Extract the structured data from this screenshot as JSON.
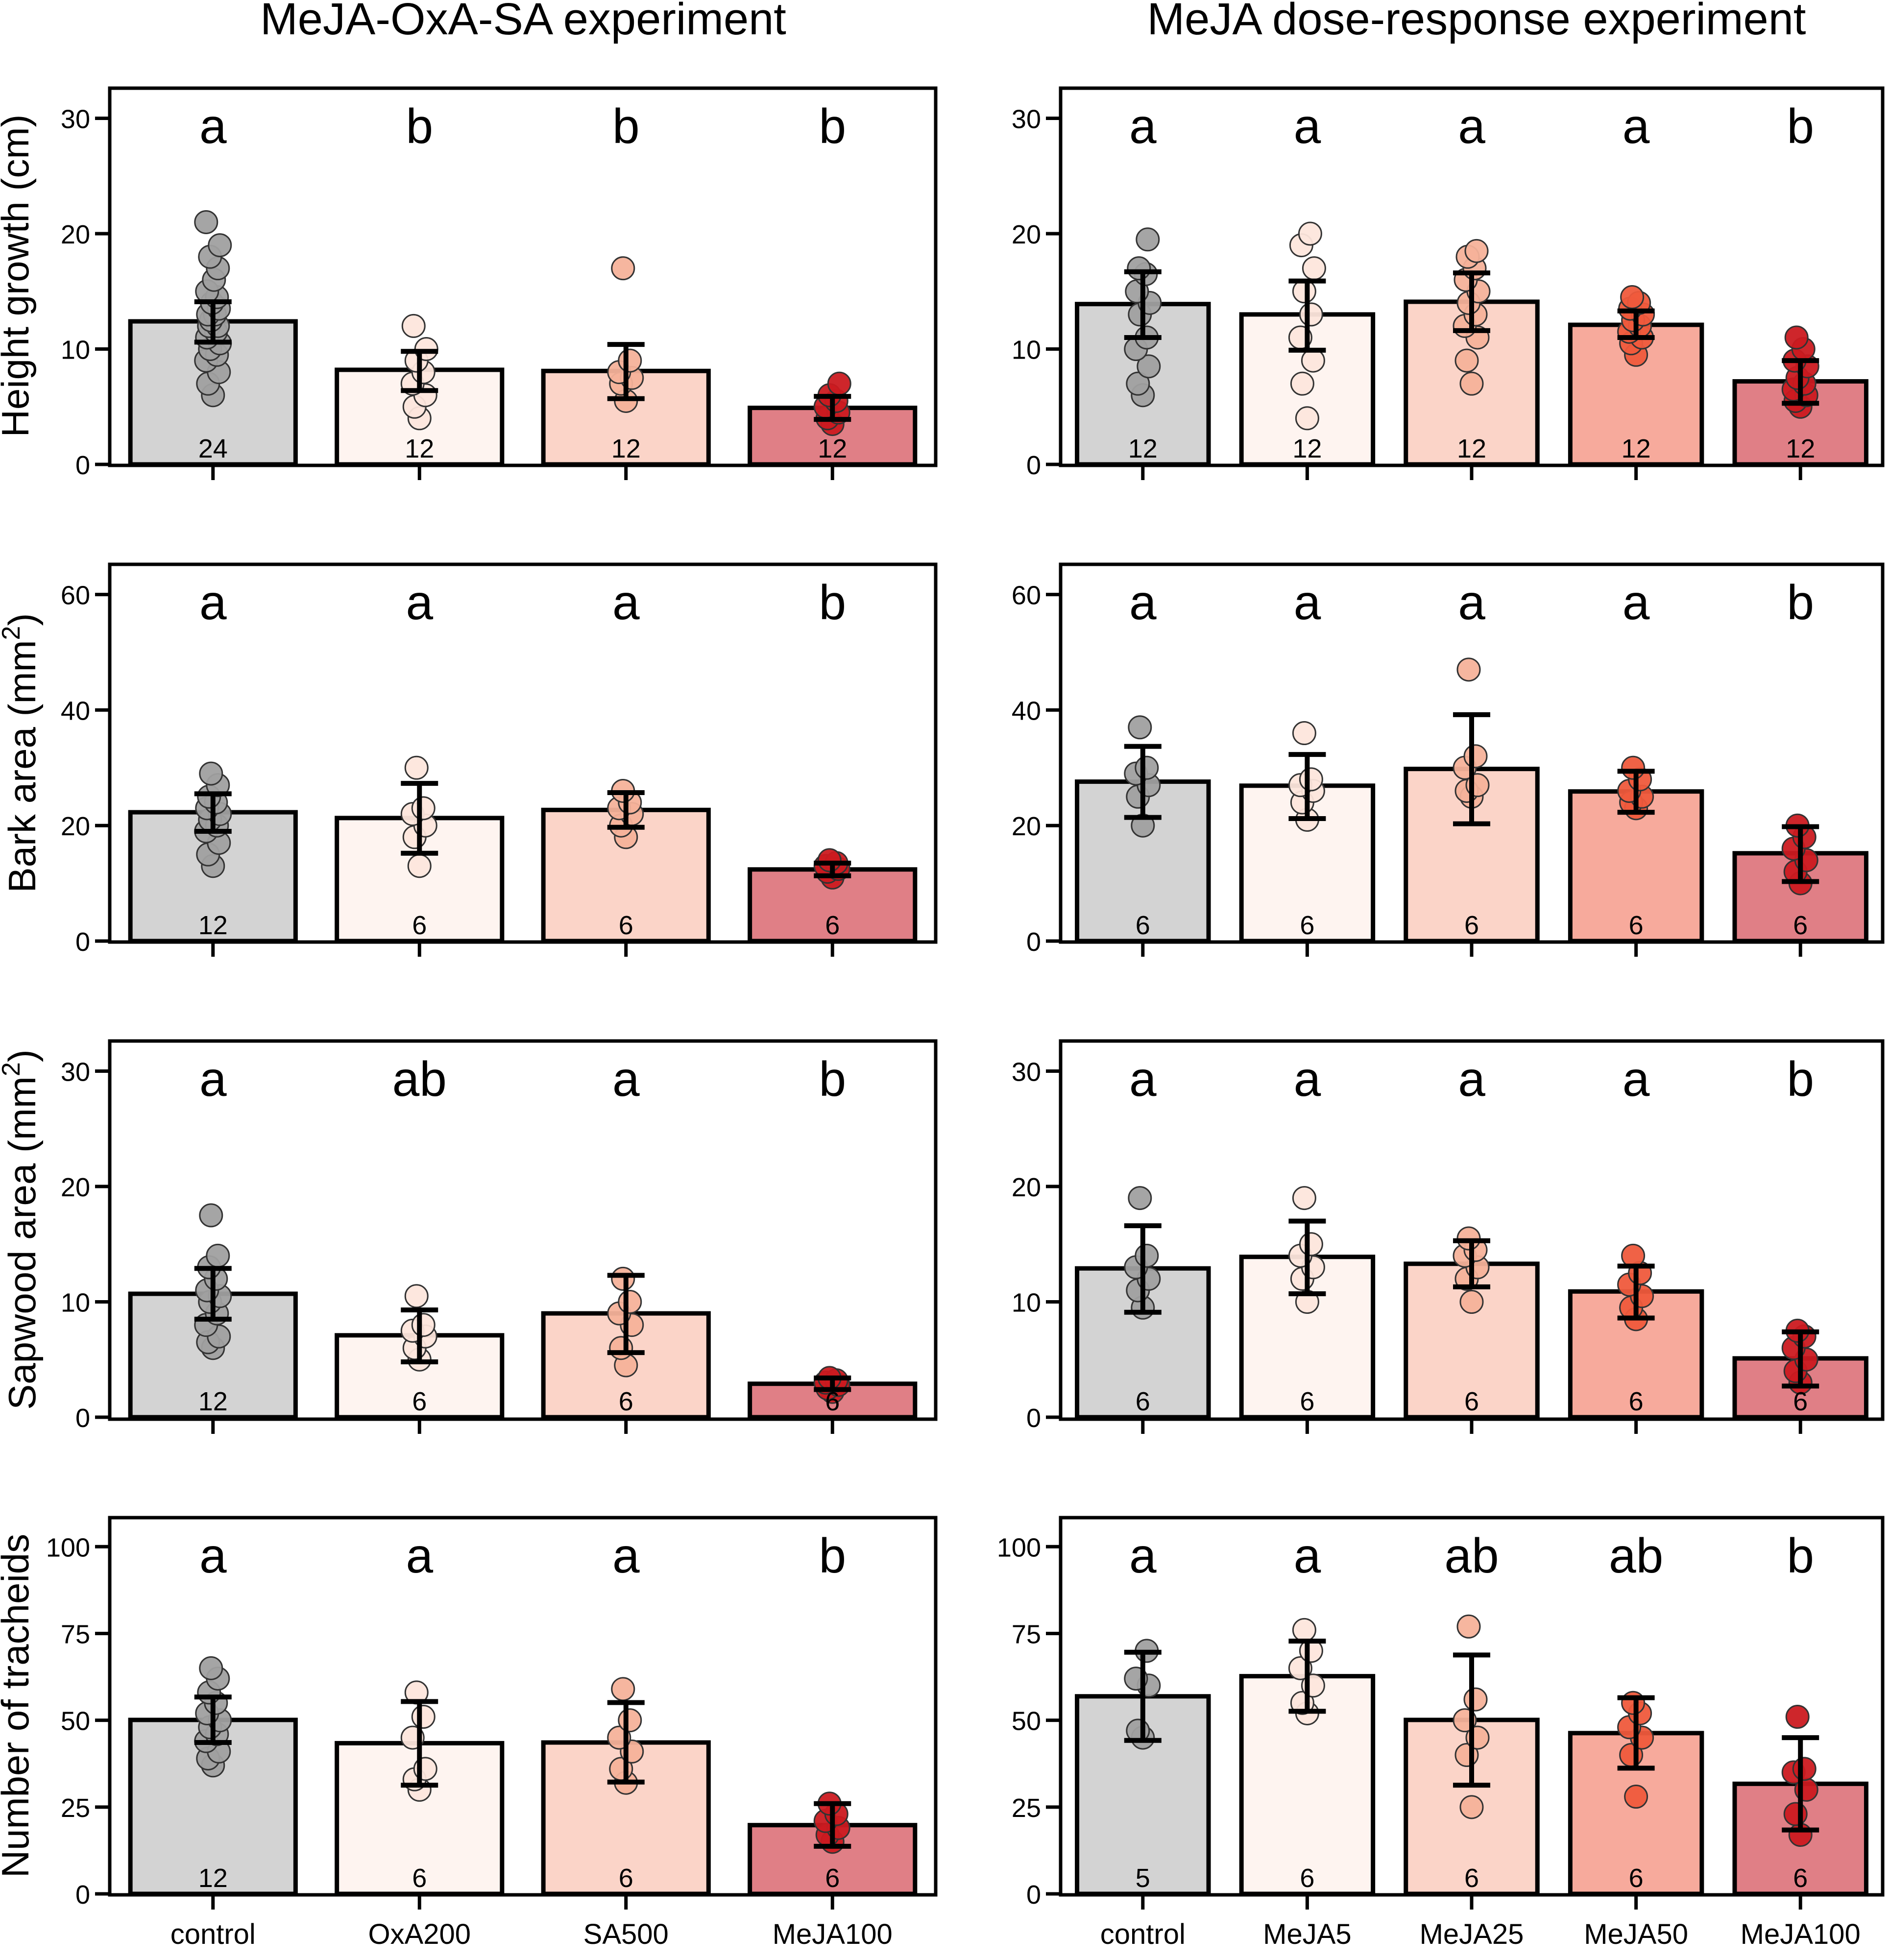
{
  "column_titles": [
    "MeJA-OxA-SA experiment",
    "MeJA dose-response experiment"
  ],
  "ylabels": [
    "Height growth (cm)",
    "Bark area (mm",
    "Sapwood area (mm",
    "Number of tracheids"
  ],
  "ylabel_superscripts": [
    "",
    "2",
    "2",
    ""
  ],
  "colors": {
    "control": "#d3d3d3",
    "fill": [
      "#d3d3d3",
      "#fef4f0",
      "#fbd4c8",
      "#f7aa9c",
      "#e07f86"
    ],
    "point": [
      "#a0a0a0",
      "#fde6dc",
      "#f6b29a",
      "#ef5a3c",
      "#cb1a20"
    ],
    "frame": "#000000"
  },
  "chart_data": [
    {
      "id": "height-left",
      "type": "bar",
      "row": 0,
      "col": 0,
      "ylim": [
        0,
        31
      ],
      "yticks": [
        0,
        10,
        20,
        30
      ],
      "categories": [
        "control",
        "OxA200",
        "SA500",
        "MeJA100"
      ],
      "color_index": [
        0,
        1,
        2,
        4
      ],
      "values": [
        12.4,
        8.2,
        8.1,
        4.9
      ],
      "err_low": [
        10.6,
        6.4,
        5.7,
        3.9
      ],
      "err_high": [
        14.1,
        9.8,
        10.4,
        5.9
      ],
      "letters": [
        "a",
        "b",
        "b",
        "b"
      ],
      "n": [
        "24",
        "12",
        "12",
        "12"
      ],
      "points": [
        [
          6,
          7,
          8,
          9,
          9.5,
          10,
          10.5,
          11,
          11.5,
          12,
          12,
          12.5,
          13,
          13,
          13.5,
          14,
          14.5,
          15,
          16,
          17,
          18,
          19,
          21
        ],
        [
          4,
          5,
          6,
          7,
          8,
          9,
          10,
          12
        ],
        [
          5.5,
          7,
          7.5,
          8,
          9,
          17
        ],
        [
          3.5,
          4,
          4.5,
          5,
          5.5,
          6,
          7
        ]
      ]
    },
    {
      "id": "height-right",
      "type": "bar",
      "row": 0,
      "col": 1,
      "ylim": [
        0,
        31
      ],
      "yticks": [
        0,
        10,
        20,
        30
      ],
      "categories": [
        "control",
        "MeJA5",
        "MeJA25",
        "MeJA50",
        "MeJA100"
      ],
      "color_index": [
        0,
        1,
        2,
        3,
        4
      ],
      "values": [
        13.9,
        13.0,
        14.1,
        12.1,
        7.2
      ],
      "err_low": [
        11.0,
        9.9,
        11.6,
        11.0,
        5.3
      ],
      "err_high": [
        16.7,
        15.9,
        16.6,
        13.3,
        9.0
      ],
      "letters": [
        "a",
        "a",
        "a",
        "a",
        "b"
      ],
      "n": [
        "12",
        "12",
        "12",
        "12",
        "12"
      ],
      "points": [
        [
          6,
          7,
          8.5,
          10,
          11,
          13,
          14,
          15,
          16.5,
          17,
          19.5
        ],
        [
          4,
          7,
          9,
          11,
          13,
          15,
          17,
          19,
          20
        ],
        [
          7,
          9,
          11,
          12,
          13,
          14,
          15,
          16,
          17,
          18,
          18.5
        ],
        [
          9.5,
          10.5,
          11,
          11.5,
          12,
          12.5,
          13,
          13.5,
          14,
          14.5
        ],
        [
          5,
          5.5,
          6,
          6.5,
          7,
          7.5,
          8.5,
          9,
          10,
          11
        ]
      ]
    },
    {
      "id": "bark-left",
      "type": "bar",
      "row": 1,
      "col": 0,
      "ylim": [
        0,
        62
      ],
      "yticks": [
        0,
        20,
        40,
        60
      ],
      "categories": [
        "control",
        "OxA200",
        "SA500",
        "MeJA100"
      ],
      "color_index": [
        0,
        1,
        2,
        4
      ],
      "values": [
        22.3,
        21.3,
        22.7,
        12.4
      ],
      "err_low": [
        19.0,
        15.2,
        19.7,
        11.3
      ],
      "err_high": [
        25.5,
        27.3,
        25.7,
        13.5
      ],
      "letters": [
        "a",
        "a",
        "a",
        "b"
      ],
      "n": [
        "12",
        "6",
        "6",
        "6"
      ],
      "points": [
        [
          13,
          15,
          17,
          19,
          20,
          21,
          22,
          23,
          24,
          25,
          27,
          29
        ],
        [
          13,
          18,
          20,
          22,
          23,
          30
        ],
        [
          18,
          20,
          22,
          23,
          24,
          26
        ],
        [
          11,
          12,
          12.5,
          13,
          13.5,
          14
        ]
      ]
    },
    {
      "id": "bark-right",
      "type": "bar",
      "row": 1,
      "col": 1,
      "ylim": [
        0,
        62
      ],
      "yticks": [
        0,
        20,
        40,
        60
      ],
      "categories": [
        "control",
        "MeJA5",
        "MeJA25",
        "MeJA50",
        "MeJA100"
      ],
      "color_index": [
        0,
        1,
        2,
        3,
        4
      ],
      "values": [
        27.6,
        26.9,
        29.8,
        25.9,
        15.2
      ],
      "err_low": [
        21.4,
        21.2,
        20.3,
        22.3,
        10.3
      ],
      "err_high": [
        33.7,
        32.3,
        39.2,
        29.4,
        19.8
      ],
      "letters": [
        "a",
        "a",
        "a",
        "a",
        "b"
      ],
      "n": [
        "6",
        "6",
        "6",
        "6",
        "6"
      ],
      "points": [
        [
          20,
          25,
          27,
          29,
          30,
          37
        ],
        [
          21,
          24,
          26,
          27,
          28,
          36
        ],
        [
          25,
          26,
          27,
          30,
          32,
          47
        ],
        [
          23,
          24,
          25,
          26,
          28,
          30
        ],
        [
          10,
          12,
          14,
          16,
          18,
          20
        ]
      ]
    },
    {
      "id": "sapwood-left",
      "type": "bar",
      "row": 2,
      "col": 0,
      "ylim": [
        0,
        31
      ],
      "yticks": [
        0,
        10,
        20,
        30
      ],
      "categories": [
        "control",
        "OxA200",
        "SA500",
        "MeJA100"
      ],
      "color_index": [
        0,
        1,
        2,
        4
      ],
      "values": [
        10.7,
        7.1,
        9.0,
        2.9
      ],
      "err_low": [
        8.5,
        4.8,
        5.6,
        2.4
      ],
      "err_high": [
        12.9,
        9.3,
        12.3,
        3.4
      ],
      "letters": [
        "a",
        "ab",
        "a",
        "b"
      ],
      "n": [
        "12",
        "6",
        "6",
        "6"
      ],
      "points": [
        [
          6,
          6.5,
          7,
          8,
          9,
          10,
          10.5,
          11,
          12,
          13,
          14,
          17.5
        ],
        [
          5,
          6,
          7,
          7.5,
          8,
          10.5
        ],
        [
          4.5,
          6,
          8,
          9,
          10,
          12
        ],
        [
          2.2,
          2.5,
          2.8,
          3,
          3.2,
          3.4
        ]
      ]
    },
    {
      "id": "sapwood-right",
      "type": "bar",
      "row": 2,
      "col": 1,
      "ylim": [
        0,
        31
      ],
      "yticks": [
        0,
        10,
        20,
        30
      ],
      "categories": [
        "control",
        "MeJA5",
        "MeJA25",
        "MeJA50",
        "MeJA100"
      ],
      "color_index": [
        0,
        1,
        2,
        3,
        4
      ],
      "values": [
        12.9,
        13.9,
        13.3,
        10.9,
        5.1
      ],
      "err_low": [
        9.1,
        10.7,
        11.3,
        8.6,
        2.7
      ],
      "err_high": [
        16.6,
        17.0,
        15.3,
        13.1,
        7.4
      ],
      "letters": [
        "a",
        "a",
        "a",
        "a",
        "b"
      ],
      "n": [
        "6",
        "6",
        "6",
        "6",
        "6"
      ],
      "points": [
        [
          9.5,
          11,
          12,
          13,
          14,
          19
        ],
        [
          10,
          12,
          13,
          14,
          15,
          19
        ],
        [
          10,
          12,
          13,
          14,
          14.5,
          15.5
        ],
        [
          8.5,
          9.5,
          10.5,
          11.5,
          12.5,
          14
        ],
        [
          3,
          4,
          5,
          6,
          7,
          7.5
        ]
      ]
    },
    {
      "id": "tracheids-left",
      "type": "bar",
      "row": 3,
      "col": 0,
      "ylim": [
        0,
        103
      ],
      "yticks": [
        0,
        25,
        50,
        75,
        100
      ],
      "categories": [
        "control",
        "OxA200",
        "SA500",
        "MeJA100"
      ],
      "color_index": [
        0,
        1,
        2,
        4
      ],
      "values": [
        50.1,
        43.4,
        43.6,
        19.8
      ],
      "err_low": [
        43.6,
        31.3,
        32.2,
        13.7
      ],
      "err_high": [
        56.7,
        55.4,
        55.1,
        26.0
      ],
      "letters": [
        "a",
        "a",
        "a",
        "b"
      ],
      "n": [
        "12",
        "6",
        "6",
        "6"
      ],
      "points": [
        [
          37,
          39,
          41,
          44,
          46,
          48,
          50,
          52,
          55,
          58,
          62,
          65
        ],
        [
          30,
          33,
          36,
          45,
          51,
          58
        ],
        [
          32,
          36,
          41,
          45,
          50,
          59
        ],
        [
          15,
          17,
          19,
          21,
          23,
          26
        ]
      ]
    },
    {
      "id": "tracheids-right",
      "type": "bar",
      "row": 3,
      "col": 1,
      "ylim": [
        0,
        103
      ],
      "yticks": [
        0,
        25,
        50,
        75,
        100
      ],
      "categories": [
        "control",
        "MeJA5",
        "MeJA25",
        "MeJA50",
        "MeJA100"
      ],
      "color_index": [
        0,
        1,
        2,
        3,
        4
      ],
      "values": [
        56.9,
        62.7,
        50.1,
        46.3,
        31.7
      ],
      "err_low": [
        44.2,
        52.6,
        31.3,
        36.2,
        18.4
      ],
      "err_high": [
        69.6,
        72.8,
        68.8,
        56.5,
        45.0
      ],
      "letters": [
        "a",
        "a",
        "ab",
        "ab",
        "b"
      ],
      "n": [
        "5",
        "6",
        "6",
        "6",
        "6"
      ],
      "points": [
        [
          45,
          47,
          60,
          62,
          70
        ],
        [
          52,
          55,
          60,
          65,
          70,
          76
        ],
        [
          25,
          40,
          45,
          50,
          56,
          77
        ],
        [
          28,
          40,
          45,
          48,
          52,
          55
        ],
        [
          17,
          23,
          30,
          35,
          36,
          51
        ]
      ]
    }
  ]
}
